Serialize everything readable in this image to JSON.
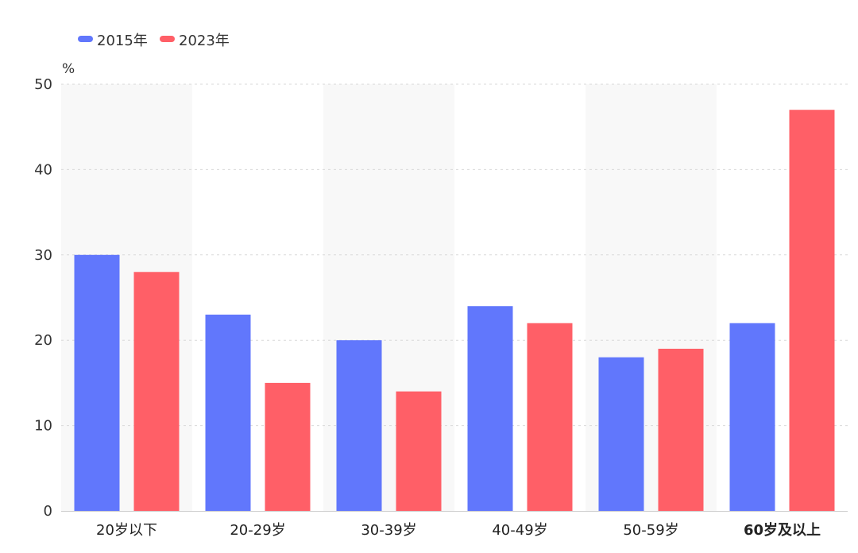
{
  "chart_data": {
    "type": "bar",
    "title": "",
    "xlabel": "",
    "ylabel": "%",
    "ylim": [
      0,
      50
    ],
    "yticks": [
      0,
      10,
      20,
      30,
      40,
      50
    ],
    "categories": [
      "20岁以下",
      "20-29岁",
      "30-39岁",
      "40-49岁",
      "50-59岁",
      "60岁及以上"
    ],
    "series": [
      {
        "name": "2015年",
        "color": "#6177FC",
        "values": [
          30,
          23,
          20,
          24,
          18,
          22
        ]
      },
      {
        "name": "2023年",
        "color": "#FF5F67",
        "values": [
          28,
          15,
          14,
          22,
          19,
          47
        ]
      }
    ],
    "grid": true,
    "legend_position": "top-left",
    "band_color": "#F8F8F8"
  }
}
